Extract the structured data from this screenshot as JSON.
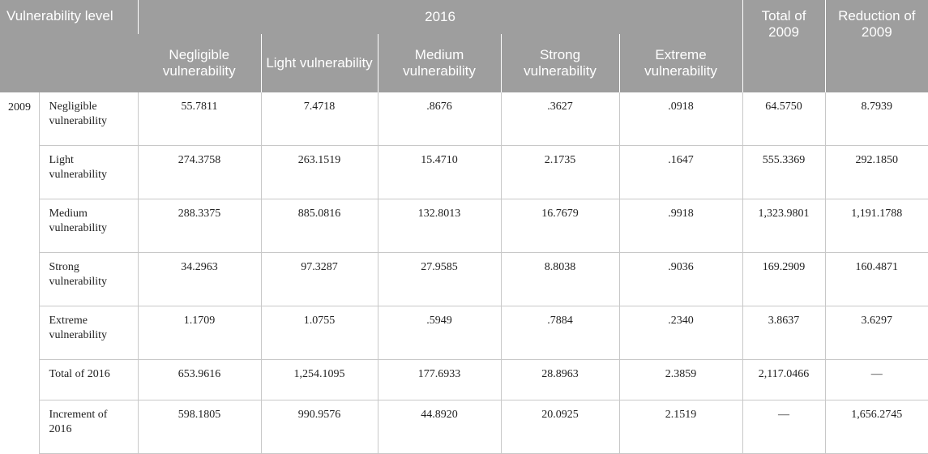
{
  "header": {
    "corner": "Vulnerability level",
    "year_2016": "2016",
    "total_2009": "Total of 2009",
    "reduction_2009": "Reduction of 2009",
    "subcolumns": [
      "Negligible vulnerability",
      "Light vulnerability",
      "Medium vulnerability",
      "Strong vulnerability",
      "Extreme vulnerability"
    ]
  },
  "year_2009": "2009",
  "rows": [
    {
      "label": "Negligible vulnerability",
      "values": [
        "55.7811",
        "7.4718",
        ".8676",
        ".3627",
        ".0918",
        "64.5750",
        "8.7939"
      ]
    },
    {
      "label": "Light vulnerability",
      "values": [
        "274.3758",
        "263.1519",
        "15.4710",
        "2.1735",
        ".1647",
        "555.3369",
        "292.1850"
      ]
    },
    {
      "label": "Medium vulnerability",
      "values": [
        "288.3375",
        "885.0816",
        "132.8013",
        "16.7679",
        ".9918",
        "1,323.9801",
        "1,191.1788"
      ]
    },
    {
      "label": "Strong vulnerability",
      "values": [
        "34.2963",
        "97.3287",
        "27.9585",
        "8.8038",
        ".9036",
        "169.2909",
        "160.4871"
      ]
    },
    {
      "label": "Extreme vulnerability",
      "values": [
        "1.1709",
        "1.0755",
        ".5949",
        ".7884",
        ".2340",
        "3.8637",
        "3.6297"
      ]
    },
    {
      "label": "Total of 2016",
      "values": [
        "653.9616",
        "1,254.1095",
        "177.6933",
        "28.8963",
        "2.3859",
        "2,117.0466",
        "—"
      ]
    },
    {
      "label": "Increment of 2016",
      "values": [
        "598.1805",
        "990.9576",
        "44.8920",
        "20.0925",
        "2.1519",
        "—",
        "1,656.2745"
      ]
    }
  ]
}
